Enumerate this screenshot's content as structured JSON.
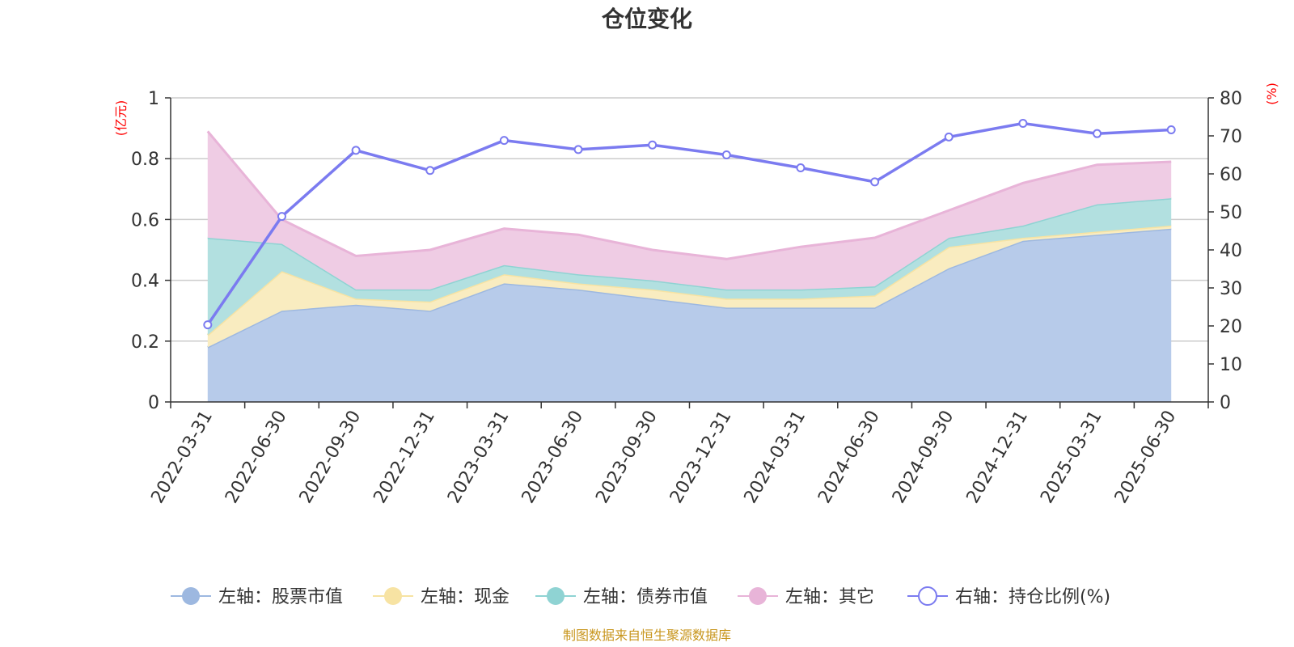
{
  "chart_data": {
    "type": "area",
    "title": "仓位变化",
    "left_axis_unit": "(亿元)",
    "right_axis_unit": "(%)",
    "categories": [
      "2022-03-31",
      "2022-06-30",
      "2022-09-30",
      "2022-12-31",
      "2023-03-31",
      "2023-06-30",
      "2023-09-30",
      "2023-12-31",
      "2024-03-31",
      "2024-06-30",
      "2024-09-30",
      "2024-12-31",
      "2025-03-31",
      "2025-06-30"
    ],
    "left_ylim": [
      0,
      1
    ],
    "left_yticks": [
      "0",
      "0.2",
      "0.4",
      "0.6",
      "0.8",
      "1"
    ],
    "right_ylim": [
      0,
      80
    ],
    "right_yticks": [
      "0",
      "10",
      "20",
      "30",
      "40",
      "50",
      "60",
      "70",
      "80"
    ],
    "stacked": true,
    "series": [
      {
        "name": "左轴：股票市值",
        "axis": "left",
        "kind": "area",
        "color": "#9db8e0",
        "fill": "#b7cbea",
        "values": [
          0.18,
          0.3,
          0.32,
          0.3,
          0.39,
          0.37,
          0.34,
          0.31,
          0.31,
          0.31,
          0.44,
          0.53,
          0.55,
          0.57
        ]
      },
      {
        "name": "左轴：现金",
        "axis": "left",
        "kind": "area",
        "color": "#f7e3a3",
        "fill": "#f9ecc0",
        "values": [
          0.04,
          0.13,
          0.02,
          0.03,
          0.03,
          0.02,
          0.03,
          0.03,
          0.03,
          0.04,
          0.07,
          0.01,
          0.01,
          0.01
        ]
      },
      {
        "name": "左轴：债券市值",
        "axis": "left",
        "kind": "area",
        "color": "#8fd3d3",
        "fill": "#b2e0e0",
        "values": [
          0.32,
          0.09,
          0.03,
          0.04,
          0.03,
          0.03,
          0.03,
          0.03,
          0.03,
          0.03,
          0.03,
          0.04,
          0.09,
          0.09
        ]
      },
      {
        "name": "左轴：其它",
        "axis": "left",
        "kind": "area",
        "color": "#e8b4d8",
        "fill": "#efcce4",
        "values": [
          0.35,
          0.08,
          0.11,
          0.13,
          0.12,
          0.13,
          0.1,
          0.1,
          0.14,
          0.16,
          0.09,
          0.14,
          0.13,
          0.12
        ]
      },
      {
        "name": "右轴：持仓比例(%)",
        "axis": "right",
        "kind": "line",
        "color": "#7b7bf0",
        "values": [
          20.3,
          48.8,
          66.2,
          60.9,
          68.8,
          66.4,
          67.6,
          65.0,
          61.6,
          57.9,
          69.7,
          73.3,
          70.6,
          71.6
        ]
      }
    ],
    "legend_position": "bottom",
    "grid": true,
    "source_note": "制图数据来自恒生聚源数据库"
  }
}
